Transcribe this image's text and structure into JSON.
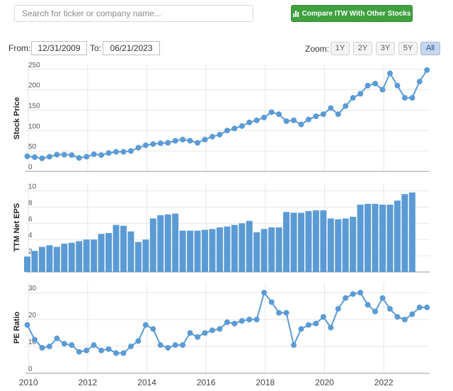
{
  "search": {
    "placeholder": "Search for ticker or company name..."
  },
  "compare_button": {
    "label": "Compare ITW With Other Stocks",
    "color": "#3fa03f"
  },
  "range": {
    "from_label": "From:",
    "from_value": "12/31/2009",
    "to_label": "To:",
    "to_value": "06/21/2023"
  },
  "zoom": {
    "label": "Zoom:",
    "options": [
      "1Y",
      "2Y",
      "3Y",
      "5Y",
      "All"
    ],
    "selected": "All"
  },
  "series_color": "#5b9bd5",
  "chart_data": [
    {
      "type": "line",
      "ylabel": "Stock Price",
      "ylim": [
        0,
        260
      ],
      "yticks": [
        0,
        50,
        100,
        150,
        200,
        250
      ],
      "xticks": [
        2010,
        2012,
        2014,
        2016,
        2018,
        2020,
        2022
      ],
      "xlim": [
        2009.9,
        2023.55
      ],
      "x": [
        2009.96,
        2010.21,
        2010.46,
        2010.71,
        2010.96,
        2011.21,
        2011.46,
        2011.71,
        2011.96,
        2012.21,
        2012.46,
        2012.71,
        2012.96,
        2013.21,
        2013.46,
        2013.71,
        2013.96,
        2014.21,
        2014.46,
        2014.71,
        2014.96,
        2015.21,
        2015.46,
        2015.71,
        2015.96,
        2016.21,
        2016.46,
        2016.71,
        2016.96,
        2017.21,
        2017.46,
        2017.71,
        2017.96,
        2018.21,
        2018.46,
        2018.71,
        2018.96,
        2019.21,
        2019.46,
        2019.71,
        2019.96,
        2020.21,
        2020.46,
        2020.71,
        2020.96,
        2021.21,
        2021.46,
        2021.71,
        2021.96,
        2022.21,
        2022.46,
        2022.71,
        2022.96,
        2023.21,
        2023.46
      ],
      "values": [
        37,
        35,
        32,
        36,
        41,
        41,
        40,
        33,
        36,
        42,
        40,
        45,
        48,
        48,
        50,
        58,
        64,
        67,
        69,
        70,
        75,
        78,
        75,
        70,
        78,
        85,
        90,
        100,
        105,
        111,
        120,
        125,
        132,
        145,
        140,
        123,
        125,
        115,
        127,
        135,
        140,
        155,
        140,
        160,
        180,
        190,
        210,
        215,
        200,
        240,
        210,
        180,
        180,
        220,
        248
      ]
    },
    {
      "type": "bar",
      "ylabel": "TTM Net EPS",
      "ylim": [
        0,
        11
      ],
      "yticks": [
        2,
        4,
        6,
        8,
        10
      ],
      "x": [
        2009.96,
        2010.21,
        2010.46,
        2010.71,
        2010.96,
        2011.21,
        2011.46,
        2011.71,
        2011.96,
        2012.21,
        2012.46,
        2012.71,
        2012.96,
        2013.21,
        2013.46,
        2013.71,
        2013.96,
        2014.21,
        2014.46,
        2014.71,
        2014.96,
        2015.21,
        2015.46,
        2015.71,
        2015.96,
        2016.21,
        2016.46,
        2016.71,
        2016.96,
        2017.21,
        2017.46,
        2017.71,
        2017.96,
        2018.21,
        2018.46,
        2018.71,
        2018.96,
        2019.21,
        2019.46,
        2019.71,
        2019.96,
        2020.21,
        2020.46,
        2020.71,
        2020.96,
        2021.21,
        2021.46,
        2021.71,
        2021.96,
        2022.21,
        2022.46,
        2022.71,
        2022.96,
        2023.21,
        2023.46
      ],
      "values": [
        1.9,
        2.6,
        3.1,
        3.3,
        3.1,
        3.5,
        3.6,
        3.8,
        4.0,
        4.0,
        4.7,
        4.8,
        5.8,
        5.7,
        5.0,
        3.7,
        4.0,
        6.6,
        7.0,
        7.1,
        7.2,
        5.1,
        5.1,
        5.1,
        5.2,
        5.3,
        5.5,
        5.6,
        5.8,
        6.0,
        6.3,
        4.9,
        5.3,
        5.5,
        5.5,
        7.4,
        7.3,
        7.3,
        7.5,
        7.6,
        7.6,
        6.6,
        6.5,
        6.6,
        6.8,
        8.3,
        8.4,
        8.4,
        8.3,
        8.3,
        8.8,
        9.6,
        9.8,
        null,
        null
      ]
    },
    {
      "type": "line",
      "ylabel": "PE Ratio",
      "ylim": [
        0,
        34
      ],
      "yticks": [
        0,
        10,
        20,
        30
      ],
      "x": [
        2009.96,
        2010.21,
        2010.46,
        2010.71,
        2010.96,
        2011.21,
        2011.46,
        2011.71,
        2011.96,
        2012.21,
        2012.46,
        2012.71,
        2012.96,
        2013.21,
        2013.46,
        2013.71,
        2013.96,
        2014.21,
        2014.46,
        2014.71,
        2014.96,
        2015.21,
        2015.46,
        2015.71,
        2015.96,
        2016.21,
        2016.46,
        2016.71,
        2016.96,
        2017.21,
        2017.46,
        2017.71,
        2017.96,
        2018.21,
        2018.46,
        2018.71,
        2018.96,
        2019.21,
        2019.46,
        2019.71,
        2019.96,
        2020.21,
        2020.46,
        2020.71,
        2020.96,
        2021.21,
        2021.46,
        2021.71,
        2021.96,
        2022.21,
        2022.46,
        2022.71,
        2022.96,
        2023.21,
        2023.46
      ],
      "values": [
        18,
        12.5,
        9.5,
        10,
        13,
        11,
        10.5,
        8,
        8.5,
        10.5,
        8.5,
        9,
        7.5,
        7.5,
        10,
        12,
        18,
        16.5,
        10.5,
        9.5,
        10.5,
        10.5,
        15,
        13.5,
        15,
        16,
        16.5,
        19,
        18.5,
        19.5,
        20,
        20,
        30,
        26.5,
        22.5,
        22.5,
        10.5,
        16.5,
        18,
        18.5,
        21,
        17,
        24,
        28,
        29.5,
        30,
        25.5,
        23,
        28,
        24,
        21,
        20,
        22,
        24.5,
        24.5
      ]
    }
  ]
}
